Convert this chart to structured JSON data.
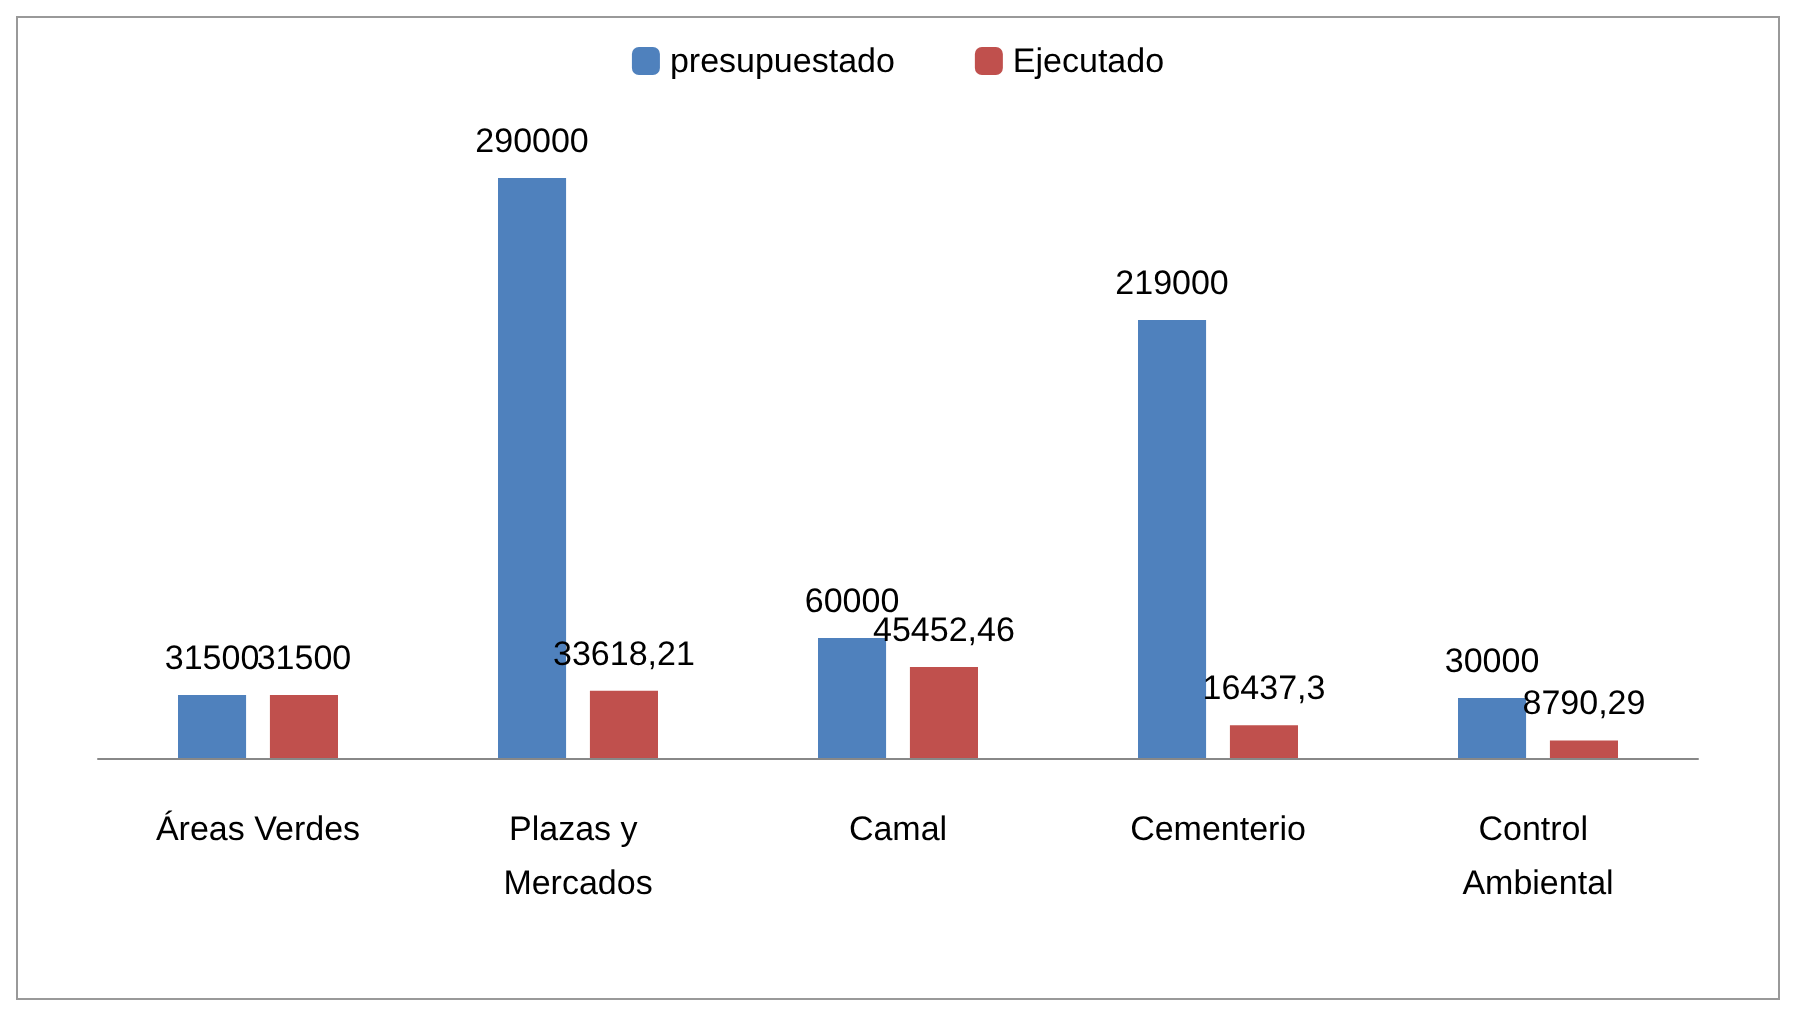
{
  "chart_data": {
    "type": "bar",
    "categories": [
      "Áreas Verdes",
      "Plazas y Mercados",
      "Camal",
      "Cementerio",
      "Control Ambiental"
    ],
    "series": [
      {
        "name": "presupuestado",
        "color": "#4f81bd",
        "values": [
          31500,
          290000,
          60000,
          219000,
          30000
        ],
        "value_labels": [
          "31500",
          "290000",
          "60000",
          "219000",
          "30000"
        ]
      },
      {
        "name": "Ejecutado",
        "color": "#c0504d",
        "values": [
          31500,
          33618.21,
          45452.46,
          16437.3,
          8790.29
        ],
        "value_labels": [
          "31500",
          "33618,21",
          "45452,46",
          "16437,3",
          "8790,29"
        ]
      }
    ],
    "legend": "top"
  }
}
